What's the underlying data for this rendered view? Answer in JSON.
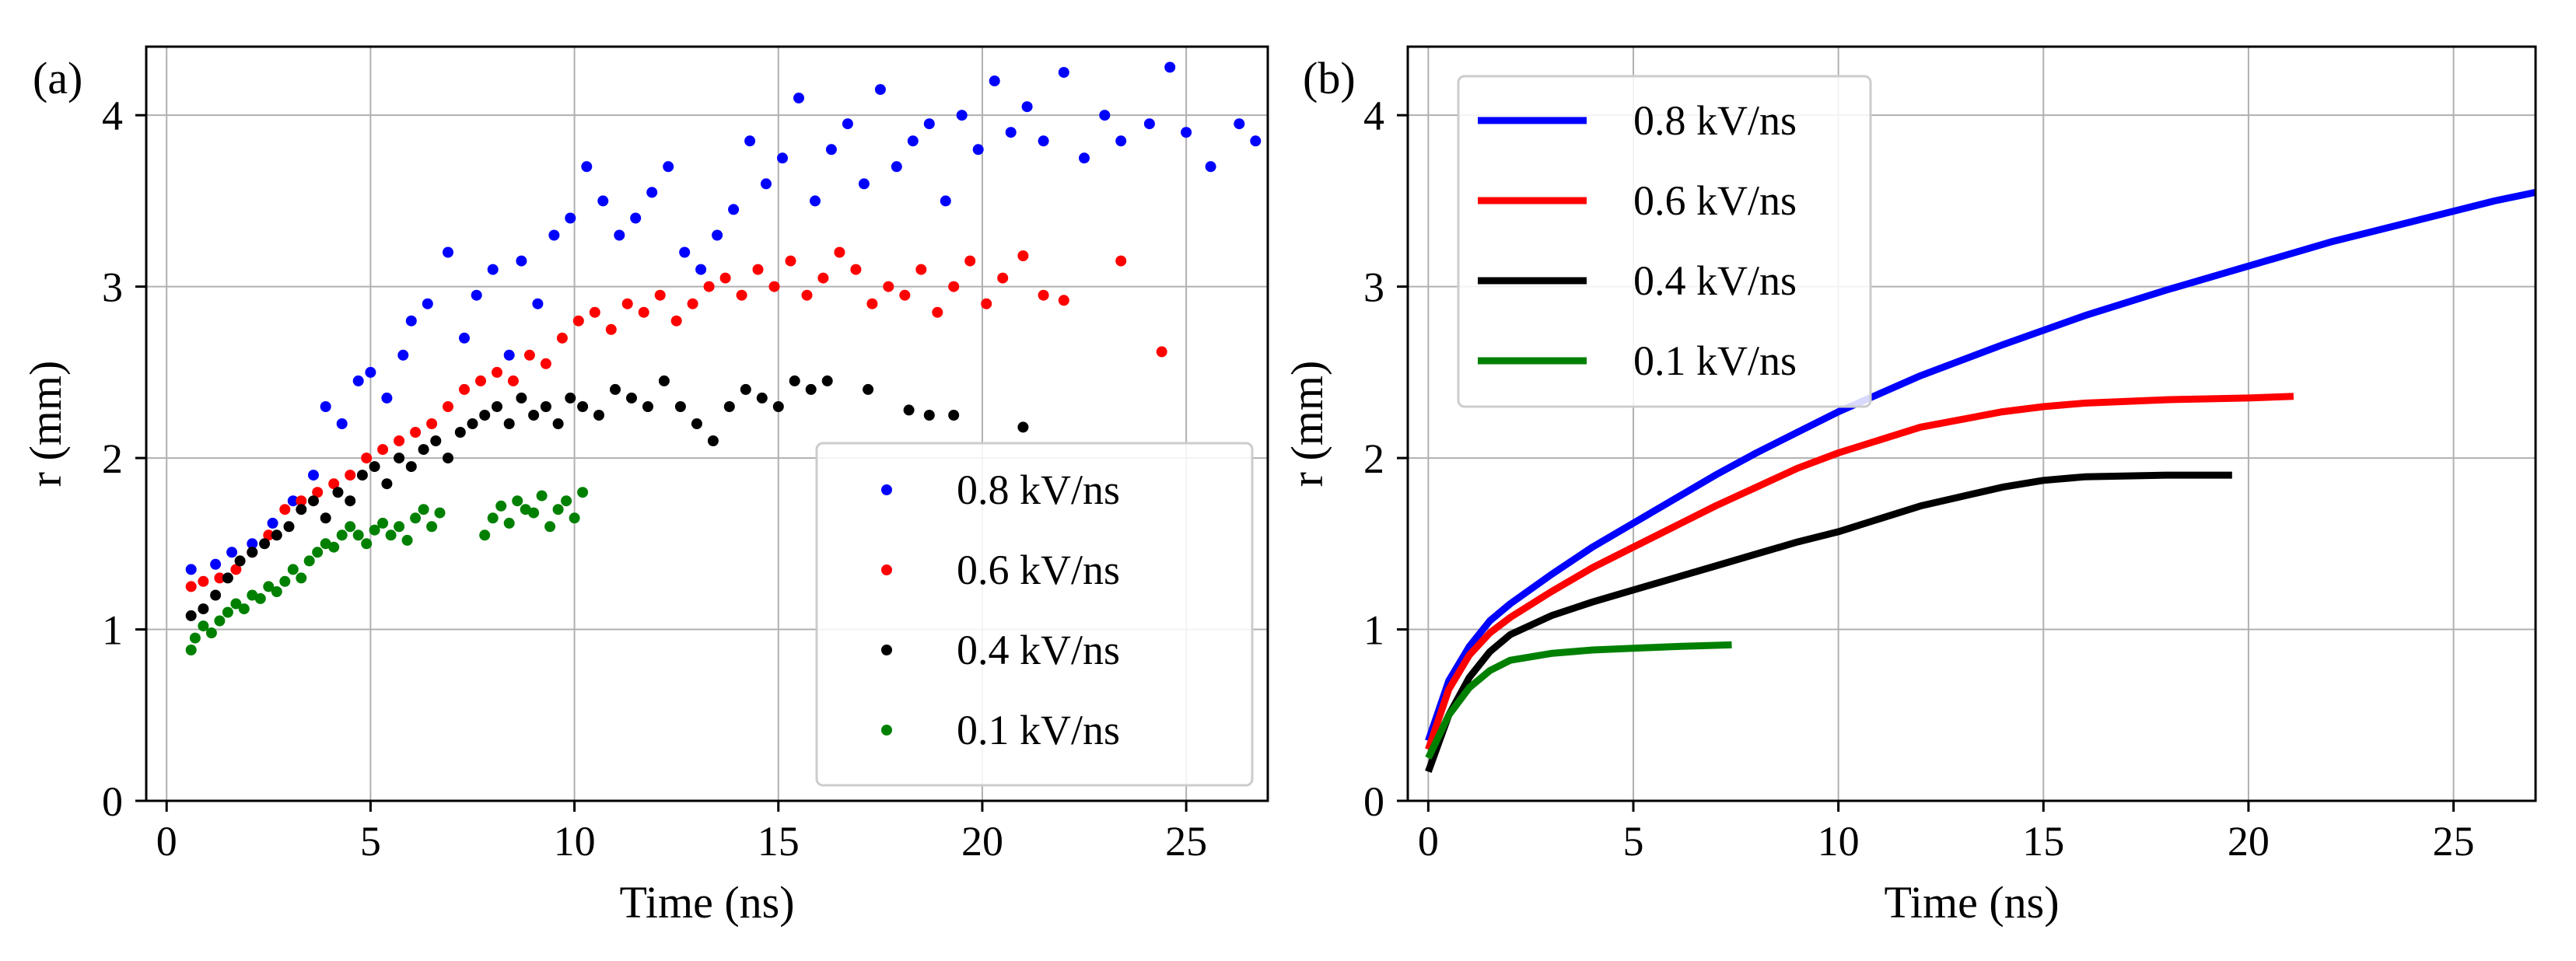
{
  "figure": {
    "panels": [
      {
        "label": "(a)"
      },
      {
        "label": "(b)"
      }
    ]
  },
  "chart_data": [
    {
      "type": "scatter",
      "panel_label": "(a)",
      "xlabel": "Time (ns)",
      "ylabel": "r (mm)",
      "xlim": [
        -0.5,
        27
      ],
      "ylim": [
        0,
        4.4
      ],
      "xticks": [
        0,
        5,
        10,
        15,
        20,
        25
      ],
      "yticks": [
        0,
        1,
        2,
        3,
        4
      ],
      "grid": true,
      "legend_position": "lower-right",
      "series": [
        {
          "name": "0.8 kV/ns",
          "color": "#0000ff",
          "points": [
            [
              0.6,
              1.35
            ],
            [
              1.2,
              1.38
            ],
            [
              1.6,
              1.45
            ],
            [
              2.1,
              1.5
            ],
            [
              2.6,
              1.62
            ],
            [
              3.1,
              1.75
            ],
            [
              3.6,
              1.9
            ],
            [
              3.9,
              2.3
            ],
            [
              4.3,
              2.2
            ],
            [
              4.7,
              2.45
            ],
            [
              5.0,
              2.5
            ],
            [
              5.4,
              2.35
            ],
            [
              5.8,
              2.6
            ],
            [
              6.0,
              2.8
            ],
            [
              6.4,
              2.9
            ],
            [
              6.9,
              3.2
            ],
            [
              7.3,
              2.7
            ],
            [
              7.6,
              2.95
            ],
            [
              8.0,
              3.1
            ],
            [
              8.4,
              2.6
            ],
            [
              8.7,
              3.15
            ],
            [
              9.1,
              2.9
            ],
            [
              9.5,
              3.3
            ],
            [
              9.9,
              3.4
            ],
            [
              10.3,
              3.7
            ],
            [
              10.7,
              3.5
            ],
            [
              11.1,
              3.3
            ],
            [
              11.5,
              3.4
            ],
            [
              11.9,
              3.55
            ],
            [
              12.3,
              3.7
            ],
            [
              12.7,
              3.2
            ],
            [
              13.1,
              3.1
            ],
            [
              13.5,
              3.3
            ],
            [
              13.9,
              3.45
            ],
            [
              14.3,
              3.85
            ],
            [
              14.7,
              3.6
            ],
            [
              15.1,
              3.75
            ],
            [
              15.5,
              4.1
            ],
            [
              15.9,
              3.5
            ],
            [
              16.3,
              3.8
            ],
            [
              16.7,
              3.95
            ],
            [
              17.1,
              3.6
            ],
            [
              17.5,
              4.15
            ],
            [
              17.9,
              3.7
            ],
            [
              18.3,
              3.85
            ],
            [
              18.7,
              3.95
            ],
            [
              19.1,
              3.5
            ],
            [
              19.5,
              4.0
            ],
            [
              19.9,
              3.8
            ],
            [
              20.3,
              4.2
            ],
            [
              20.7,
              3.9
            ],
            [
              21.1,
              4.05
            ],
            [
              21.5,
              3.85
            ],
            [
              22.0,
              4.25
            ],
            [
              22.5,
              3.75
            ],
            [
              23.0,
              4.0
            ],
            [
              23.4,
              3.85
            ],
            [
              24.1,
              3.95
            ],
            [
              24.6,
              4.28
            ],
            [
              25.0,
              3.9
            ],
            [
              25.6,
              3.7
            ],
            [
              26.3,
              3.95
            ],
            [
              26.7,
              3.85
            ]
          ]
        },
        {
          "name": "0.6 kV/ns",
          "color": "#ff0000",
          "points": [
            [
              0.6,
              1.25
            ],
            [
              0.9,
              1.28
            ],
            [
              1.3,
              1.3
            ],
            [
              1.7,
              1.35
            ],
            [
              2.1,
              1.45
            ],
            [
              2.5,
              1.55
            ],
            [
              2.9,
              1.7
            ],
            [
              3.3,
              1.75
            ],
            [
              3.7,
              1.8
            ],
            [
              4.1,
              1.85
            ],
            [
              4.5,
              1.9
            ],
            [
              4.9,
              2.0
            ],
            [
              5.3,
              2.05
            ],
            [
              5.7,
              2.1
            ],
            [
              6.1,
              2.15
            ],
            [
              6.5,
              2.2
            ],
            [
              6.9,
              2.3
            ],
            [
              7.3,
              2.4
            ],
            [
              7.7,
              2.45
            ],
            [
              8.1,
              2.5
            ],
            [
              8.5,
              2.45
            ],
            [
              8.9,
              2.6
            ],
            [
              9.3,
              2.55
            ],
            [
              9.7,
              2.7
            ],
            [
              10.1,
              2.8
            ],
            [
              10.5,
              2.85
            ],
            [
              10.9,
              2.75
            ],
            [
              11.3,
              2.9
            ],
            [
              11.7,
              2.85
            ],
            [
              12.1,
              2.95
            ],
            [
              12.5,
              2.8
            ],
            [
              12.9,
              2.9
            ],
            [
              13.3,
              3.0
            ],
            [
              13.7,
              3.05
            ],
            [
              14.1,
              2.95
            ],
            [
              14.5,
              3.1
            ],
            [
              14.9,
              3.0
            ],
            [
              15.3,
              3.15
            ],
            [
              15.7,
              2.95
            ],
            [
              16.1,
              3.05
            ],
            [
              16.5,
              3.2
            ],
            [
              16.9,
              3.1
            ],
            [
              17.3,
              2.9
            ],
            [
              17.7,
              3.0
            ],
            [
              18.1,
              2.95
            ],
            [
              18.5,
              3.1
            ],
            [
              18.9,
              2.85
            ],
            [
              19.3,
              3.0
            ],
            [
              19.7,
              3.15
            ],
            [
              20.1,
              2.9
            ],
            [
              20.5,
              3.05
            ],
            [
              21.0,
              3.18
            ],
            [
              21.5,
              2.95
            ],
            [
              22.0,
              2.92
            ],
            [
              23.4,
              3.15
            ],
            [
              24.4,
              2.62
            ]
          ]
        },
        {
          "name": "0.4 kV/ns",
          "color": "#000000",
          "points": [
            [
              0.6,
              1.08
            ],
            [
              0.9,
              1.12
            ],
            [
              1.2,
              1.2
            ],
            [
              1.5,
              1.3
            ],
            [
              1.8,
              1.4
            ],
            [
              2.1,
              1.45
            ],
            [
              2.4,
              1.5
            ],
            [
              2.7,
              1.55
            ],
            [
              3.0,
              1.6
            ],
            [
              3.3,
              1.7
            ],
            [
              3.6,
              1.75
            ],
            [
              3.9,
              1.65
            ],
            [
              4.2,
              1.8
            ],
            [
              4.5,
              1.75
            ],
            [
              4.8,
              1.9
            ],
            [
              5.1,
              1.95
            ],
            [
              5.4,
              1.85
            ],
            [
              5.7,
              2.0
            ],
            [
              6.0,
              1.95
            ],
            [
              6.3,
              2.05
            ],
            [
              6.6,
              2.1
            ],
            [
              6.9,
              2.0
            ],
            [
              7.2,
              2.15
            ],
            [
              7.5,
              2.2
            ],
            [
              7.8,
              2.25
            ],
            [
              8.1,
              2.3
            ],
            [
              8.4,
              2.2
            ],
            [
              8.7,
              2.35
            ],
            [
              9.0,
              2.25
            ],
            [
              9.3,
              2.3
            ],
            [
              9.6,
              2.2
            ],
            [
              9.9,
              2.35
            ],
            [
              10.2,
              2.3
            ],
            [
              10.6,
              2.25
            ],
            [
              11.0,
              2.4
            ],
            [
              11.4,
              2.35
            ],
            [
              11.8,
              2.3
            ],
            [
              12.2,
              2.45
            ],
            [
              12.6,
              2.3
            ],
            [
              13.0,
              2.2
            ],
            [
              13.4,
              2.1
            ],
            [
              13.8,
              2.3
            ],
            [
              14.2,
              2.4
            ],
            [
              14.6,
              2.35
            ],
            [
              15.0,
              2.3
            ],
            [
              15.4,
              2.45
            ],
            [
              15.8,
              2.4
            ],
            [
              16.2,
              2.45
            ],
            [
              17.2,
              2.4
            ],
            [
              18.2,
              2.28
            ],
            [
              18.7,
              2.25
            ],
            [
              19.3,
              2.25
            ],
            [
              21.0,
              2.18
            ]
          ]
        },
        {
          "name": "0.1 kV/ns",
          "color": "#008000",
          "points": [
            [
              0.6,
              0.88
            ],
            [
              0.7,
              0.95
            ],
            [
              0.9,
              1.02
            ],
            [
              1.1,
              0.98
            ],
            [
              1.3,
              1.05
            ],
            [
              1.5,
              1.1
            ],
            [
              1.7,
              1.15
            ],
            [
              1.9,
              1.12
            ],
            [
              2.1,
              1.2
            ],
            [
              2.3,
              1.18
            ],
            [
              2.5,
              1.25
            ],
            [
              2.7,
              1.22
            ],
            [
              2.9,
              1.28
            ],
            [
              3.1,
              1.35
            ],
            [
              3.3,
              1.3
            ],
            [
              3.5,
              1.4
            ],
            [
              3.7,
              1.45
            ],
            [
              3.9,
              1.5
            ],
            [
              4.1,
              1.48
            ],
            [
              4.3,
              1.55
            ],
            [
              4.5,
              1.6
            ],
            [
              4.7,
              1.55
            ],
            [
              4.9,
              1.5
            ],
            [
              5.1,
              1.58
            ],
            [
              5.3,
              1.62
            ],
            [
              5.5,
              1.55
            ],
            [
              5.7,
              1.6
            ],
            [
              5.9,
              1.52
            ],
            [
              6.1,
              1.65
            ],
            [
              6.3,
              1.7
            ],
            [
              6.5,
              1.6
            ],
            [
              6.7,
              1.68
            ],
            [
              7.8,
              1.55
            ],
            [
              8.0,
              1.65
            ],
            [
              8.2,
              1.72
            ],
            [
              8.4,
              1.62
            ],
            [
              8.6,
              1.75
            ],
            [
              8.8,
              1.7
            ],
            [
              9.0,
              1.68
            ],
            [
              9.2,
              1.78
            ],
            [
              9.4,
              1.6
            ],
            [
              9.6,
              1.7
            ],
            [
              9.8,
              1.75
            ],
            [
              10.0,
              1.65
            ],
            [
              10.2,
              1.8
            ]
          ]
        }
      ]
    },
    {
      "type": "line",
      "panel_label": "(b)",
      "xlabel": "Time (ns)",
      "ylabel": "r (mm)",
      "xlim": [
        -0.5,
        27
      ],
      "ylim": [
        0,
        4.4
      ],
      "xticks": [
        0,
        5,
        10,
        15,
        20,
        25
      ],
      "yticks": [
        0,
        1,
        2,
        3,
        4
      ],
      "grid": true,
      "legend_position": "upper-left",
      "series": [
        {
          "name": "0.8 kV/ns",
          "color": "#0000ff",
          "x": [
            0,
            0.5,
            1,
            1.5,
            2,
            3,
            4,
            5,
            6,
            7,
            8,
            9,
            10,
            12,
            14,
            16,
            18,
            20,
            22,
            24,
            26,
            27
          ],
          "y": [
            0.35,
            0.7,
            0.9,
            1.05,
            1.15,
            1.32,
            1.48,
            1.62,
            1.76,
            1.9,
            2.03,
            2.15,
            2.27,
            2.48,
            2.66,
            2.83,
            2.98,
            3.12,
            3.26,
            3.38,
            3.5,
            3.55
          ]
        },
        {
          "name": "0.6 kV/ns",
          "color": "#ff0000",
          "x": [
            0,
            0.5,
            1,
            1.5,
            2,
            3,
            4,
            5,
            6,
            7,
            8,
            9,
            10,
            12,
            14,
            15,
            16,
            18,
            20,
            21.1
          ],
          "y": [
            0.3,
            0.65,
            0.85,
            0.98,
            1.07,
            1.22,
            1.36,
            1.48,
            1.6,
            1.72,
            1.83,
            1.94,
            2.03,
            2.18,
            2.27,
            2.3,
            2.32,
            2.34,
            2.35,
            2.36
          ]
        },
        {
          "name": "0.4 kV/ns",
          "color": "#000000",
          "x": [
            0,
            0.5,
            1,
            1.5,
            2,
            3,
            4,
            5,
            6,
            7,
            8,
            9,
            10,
            12,
            14,
            15,
            16,
            18,
            19.6
          ],
          "y": [
            0.17,
            0.5,
            0.72,
            0.87,
            0.97,
            1.08,
            1.16,
            1.23,
            1.3,
            1.37,
            1.44,
            1.51,
            1.57,
            1.72,
            1.83,
            1.87,
            1.89,
            1.9,
            1.9
          ]
        },
        {
          "name": "0.1 kV/ns",
          "color": "#008000",
          "x": [
            0,
            0.5,
            1,
            1.5,
            2,
            3,
            4,
            5,
            6,
            7.4
          ],
          "y": [
            0.25,
            0.5,
            0.66,
            0.76,
            0.82,
            0.86,
            0.88,
            0.89,
            0.9,
            0.91
          ]
        }
      ]
    }
  ]
}
